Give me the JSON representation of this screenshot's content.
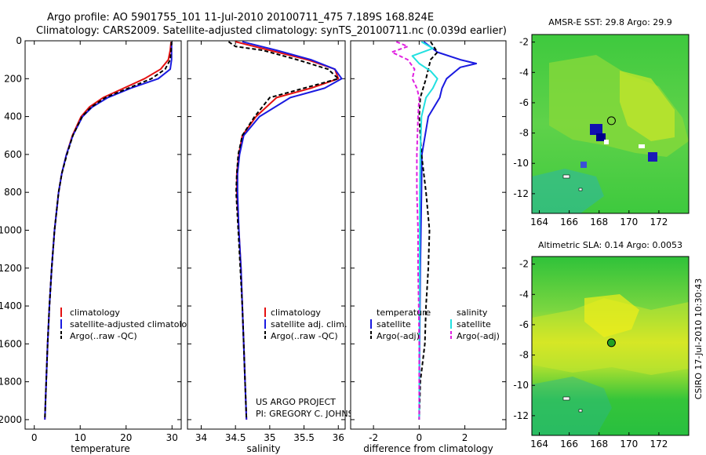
{
  "figure": {
    "title_line1": "Argo profile: AO 5901755_101 11-Jul-2010 20100711_475 7.189S 168.824E",
    "title_line2": "Climatology: CARS2009. Satellite-adjusted climatology: synTS_20100711.nc (0.039d earlier)",
    "credit_line1": "US ARGO PROJECT",
    "credit_line2": "PI: GREGORY C. JOHNSON",
    "side_stamp": "CSIRO 17-Jul-2010 10:30:43"
  },
  "colors": {
    "climatology": "#e41010",
    "satellite": "#1a1ae0",
    "argo": "#000000",
    "sat_salinity": "#22e0e0",
    "argo_adj_salinity": "#e020e0"
  },
  "chart_data": [
    {
      "type": "line",
      "id": "temperature",
      "xlabel": "temperature",
      "ylabel": "",
      "xlim": [
        -2,
        32
      ],
      "ylim": [
        2050,
        0
      ],
      "xticks": [
        0,
        10,
        20,
        30
      ],
      "yticks": [
        0,
        200,
        400,
        600,
        800,
        1000,
        1200,
        1400,
        1600,
        1800,
        2000
      ],
      "legend": [
        "climatology",
        "satellite-adjusted climatology",
        "Argo(..raw -QC)"
      ],
      "series": [
        {
          "name": "climatology",
          "color": "climatology",
          "dash": "",
          "depth": [
            5,
            50,
            100,
            150,
            200,
            250,
            300,
            350,
            400,
            500,
            600,
            700,
            800,
            1000,
            1200,
            1400,
            1600,
            1800,
            2000
          ],
          "values": [
            29.8,
            29.6,
            29.2,
            27.5,
            24.0,
            19.5,
            15.0,
            12.0,
            10.2,
            8.3,
            7.0,
            6.0,
            5.3,
            4.4,
            3.8,
            3.3,
            2.9,
            2.6,
            2.3
          ]
        },
        {
          "name": "satellite-adjusted climatology",
          "color": "satellite",
          "dash": "",
          "depth": [
            5,
            50,
            100,
            150,
            200,
            250,
            300,
            350,
            400,
            500,
            600,
            700,
            800,
            1000,
            1200,
            1400,
            1600,
            1800,
            2000
          ],
          "values": [
            29.9,
            29.9,
            29.9,
            29.6,
            27.0,
            21.0,
            16.0,
            12.6,
            10.5,
            8.4,
            7.0,
            6.0,
            5.3,
            4.4,
            3.8,
            3.3,
            2.9,
            2.6,
            2.3
          ]
        },
        {
          "name": "Argo(..raw -QC)",
          "color": "argo",
          "dash": "5,3",
          "depth": [
            5,
            50,
            100,
            150,
            200,
            250,
            300,
            350,
            400,
            500,
            600,
            700,
            800,
            1000,
            1200,
            1400,
            1600,
            1800,
            2000
          ],
          "values": [
            29.9,
            29.8,
            29.6,
            28.5,
            25.5,
            20.5,
            15.5,
            12.4,
            10.4,
            8.4,
            7.1,
            6.0,
            5.3,
            4.4,
            3.8,
            3.3,
            2.9,
            2.6,
            2.3
          ]
        }
      ]
    },
    {
      "type": "line",
      "id": "salinity",
      "xlabel": "salinity",
      "ylabel": "",
      "xlim": [
        33.8,
        36.1
      ],
      "ylim": [
        2050,
        0
      ],
      "xticks": [
        34,
        34.5,
        35,
        35.5,
        36
      ],
      "legend": [
        "climatology",
        "satellite adj. clim.",
        "Argo(..raw -QC)"
      ],
      "series": [
        {
          "name": "climatology",
          "color": "climatology",
          "dash": "",
          "depth": [
            5,
            50,
            100,
            150,
            200,
            250,
            300,
            400,
            500,
            600,
            700,
            800,
            1000,
            1200,
            1400,
            1600,
            1800,
            2000
          ],
          "values": [
            34.5,
            35.0,
            35.55,
            35.95,
            36.0,
            35.6,
            35.1,
            34.8,
            34.6,
            34.55,
            34.52,
            34.52,
            34.55,
            34.58,
            34.6,
            34.62,
            34.64,
            34.66
          ]
        },
        {
          "name": "satellite adj. clim.",
          "color": "satellite",
          "dash": "",
          "depth": [
            5,
            50,
            100,
            150,
            200,
            250,
            300,
            400,
            500,
            600,
            700,
            800,
            1000,
            1200,
            1400,
            1600,
            1800,
            2000
          ],
          "values": [
            34.6,
            35.1,
            35.6,
            35.95,
            36.05,
            35.8,
            35.3,
            34.85,
            34.62,
            34.56,
            34.53,
            34.53,
            34.55,
            34.58,
            34.6,
            34.62,
            34.64,
            34.66
          ]
        },
        {
          "name": "Argo(..raw -QC)",
          "color": "argo",
          "dash": "5,3",
          "depth": [
            5,
            30,
            50,
            100,
            150,
            200,
            250,
            300,
            400,
            500,
            600,
            700,
            800,
            1000,
            1200,
            1400,
            1600,
            1800,
            2000
          ],
          "values": [
            34.4,
            34.5,
            34.9,
            35.4,
            35.85,
            36.0,
            35.5,
            35.0,
            34.78,
            34.6,
            34.54,
            34.52,
            34.51,
            34.54,
            34.57,
            34.6,
            34.62,
            34.64,
            34.66
          ]
        }
      ]
    },
    {
      "type": "line",
      "id": "difference",
      "xlabel": "difference from climatology",
      "ylabel": "",
      "xlim": [
        -3,
        3.8
      ],
      "ylim": [
        2050,
        0
      ],
      "xticks": [
        -2,
        0,
        2
      ],
      "legend_temperature": [
        "temperature",
        "satellite",
        "Argo(-adj)"
      ],
      "legend_salinity": [
        "salinity",
        "satellite",
        "Argo(-adj)"
      ],
      "series": [
        {
          "name": "satellite",
          "group": "temperature",
          "color": "satellite",
          "dash": "",
          "depth": [
            5,
            60,
            100,
            120,
            140,
            160,
            200,
            250,
            300,
            400,
            600,
            800,
            1200,
            1600,
            2000
          ],
          "values": [
            0.2,
            0.8,
            1.8,
            2.5,
            1.8,
            1.6,
            1.2,
            1.0,
            0.9,
            0.4,
            0.12,
            0.1,
            0.05,
            0.02,
            0.0
          ]
        },
        {
          "name": "Argo(-adj)",
          "group": "temperature",
          "color": "argo",
          "dash": "5,3",
          "depth": [
            5,
            60,
            100,
            150,
            200,
            300,
            400,
            600,
            800,
            1000,
            1200,
            1400,
            1600,
            1800,
            2000
          ],
          "values": [
            0.5,
            0.8,
            0.5,
            0.4,
            0.3,
            0.05,
            0.0,
            0.1,
            0.3,
            0.45,
            0.4,
            0.3,
            0.25,
            0.05,
            0.0
          ]
        },
        {
          "name": "satellite",
          "group": "salinity",
          "color": "sat_salinity",
          "dash": "",
          "depth": [
            5,
            40,
            80,
            120,
            160,
            200,
            250,
            300,
            400,
            600,
            800,
            1200,
            1600,
            2000
          ],
          "values": [
            0.1,
            0.6,
            -0.3,
            0.0,
            0.5,
            0.8,
            0.6,
            0.3,
            0.1,
            0.05,
            0.03,
            0.02,
            0.01,
            0.0
          ]
        },
        {
          "name": "Argo(-adj)",
          "group": "salinity",
          "color": "argo_adj_salinity",
          "dash": "5,3",
          "depth": [
            5,
            30,
            60,
            100,
            150,
            200,
            250,
            300,
            400,
            600,
            800,
            1000,
            1200,
            1400,
            1600,
            1800,
            2000
          ],
          "values": [
            -1.0,
            -0.5,
            -1.2,
            -0.5,
            -0.2,
            -0.3,
            -0.1,
            0.0,
            -0.05,
            -0.1,
            -0.1,
            -0.05,
            -0.05,
            -0.02,
            0.0,
            0.0,
            0.0
          ]
        }
      ]
    },
    {
      "type": "heatmap",
      "id": "sst_map",
      "title": "AMSR-E SST: 29.8 Argo: 29.9",
      "xlim": [
        163.5,
        174
      ],
      "ylim": [
        -13.3,
        -1.5
      ],
      "xticks": [
        164,
        166,
        168,
        170,
        172
      ],
      "yticks": [
        -2,
        -4,
        -6,
        -8,
        -10,
        -12
      ],
      "argo_position": {
        "lon": 168.824,
        "lat": -7.189
      },
      "marker_fill": "none"
    },
    {
      "type": "heatmap",
      "id": "sla_map",
      "title": "Altimetric SLA: 0.14 Argo: 0.0053",
      "xlim": [
        163.5,
        174
      ],
      "ylim": [
        -13.3,
        -1.5
      ],
      "xticks": [
        164,
        166,
        168,
        170,
        172
      ],
      "yticks": [
        -2,
        -4,
        -6,
        -8,
        -10,
        -12
      ],
      "argo_position": {
        "lon": 168.824,
        "lat": -7.189
      },
      "marker_fill": "#22a022"
    }
  ]
}
